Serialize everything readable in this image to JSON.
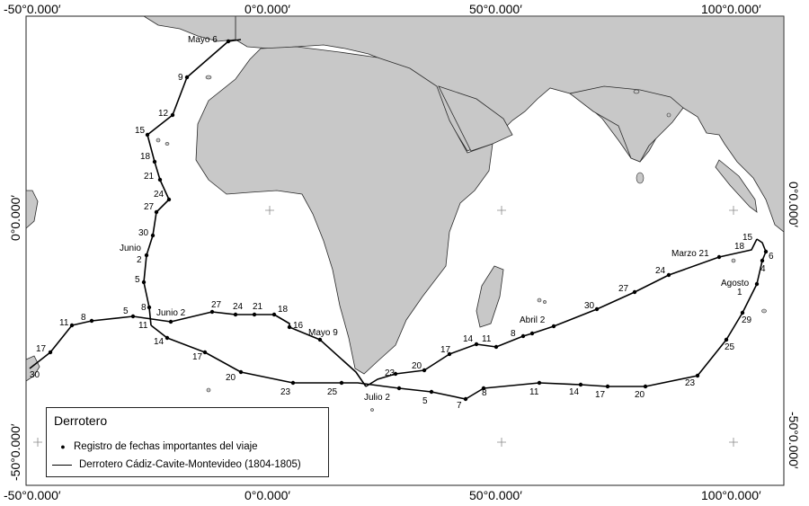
{
  "map": {
    "colors": {
      "land": "#c8c8c8",
      "coast": "#2a2a2a",
      "sea": "#ffffff",
      "route": "#000000"
    },
    "grid_labels": {
      "top": [
        "-50°0.000′",
        "0°0.000′",
        "50°0.000′",
        "100°0.000′"
      ],
      "bottom": [
        "-50°0.000′",
        "0°0.000′",
        "50°0.000′",
        "100°0.000′"
      ],
      "left": [
        "0°0.000′",
        "-50°0.000′"
      ],
      "right": [
        "0°0.000′",
        "-50°0.000′"
      ]
    },
    "route_labels": [
      "Mayo 6",
      "9",
      "12",
      "15",
      "18",
      "21",
      "24",
      "27",
      "30",
      "Junio",
      "2",
      "5",
      "8",
      "Junio 2",
      "11",
      "14",
      "17",
      "20",
      "23",
      "25",
      "Julio 2",
      "5",
      "7",
      "8",
      "11",
      "14",
      "17",
      "20",
      "23",
      "25",
      "29",
      "Agosto",
      "1",
      "4",
      "6",
      "15",
      "18",
      "Marzo 21",
      "24",
      "27",
      "30",
      "Abril 2",
      "8",
      "11",
      "14",
      "17",
      "20",
      "23",
      "Mayo 9",
      "16",
      "18",
      "21",
      "24",
      "27",
      "5",
      "8",
      "11",
      "17",
      "30"
    ]
  },
  "legend": {
    "title": "Derrotero",
    "dot_symbol": "●",
    "items": [
      "Registro de fechas importantes del viaje",
      "Derrotero Cádiz-Cavite-Montevideo (1804-1805)"
    ]
  }
}
